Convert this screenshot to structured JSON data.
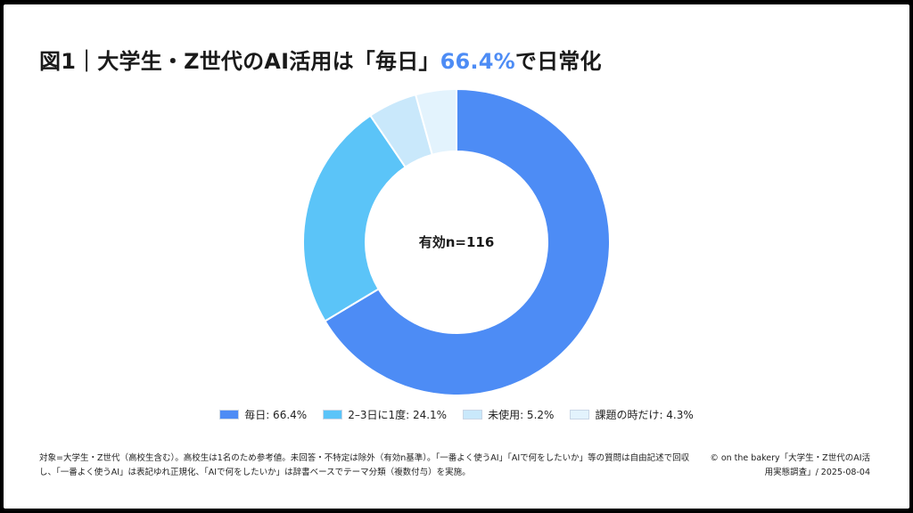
{
  "title": {
    "prefix": "図1｜大学生・Z世代のAI活用は「毎日」",
    "highlight": "66.4%",
    "suffix": "で日常化"
  },
  "chart_data": {
    "type": "pie",
    "center_label": "有効n=116",
    "slices": [
      {
        "label": "毎日: 66.4%",
        "value": 66.4,
        "color": "#4d8cf5"
      },
      {
        "label": "2–3日に1度: 24.1%",
        "value": 24.1,
        "color": "#5bc4f8"
      },
      {
        "label": "未使用: 5.2%",
        "value": 5.2,
        "color": "#c9e8fb"
      },
      {
        "label": "課題の時だけ: 4.3%",
        "value": 4.3,
        "color": "#e3f3fd"
      }
    ],
    "legend_position": "bottom"
  },
  "footnote": "対象=大学生・Z世代（高校生含む）。高校生は1名のため参考値。未回答・不特定は除外（有効n基準）。「一番よく使うAI」「AIで何をしたいか」等の質問は自由記述で回収し、「一番よく使うAI」は表記ゆれ正規化、「AIで何をしたいか」は辞書ベースでテーマ分類（複数付与）を実施。",
  "credit": "© on the bakery「大学生・Z世代のAI活用実態調査」/ 2025-08-04"
}
